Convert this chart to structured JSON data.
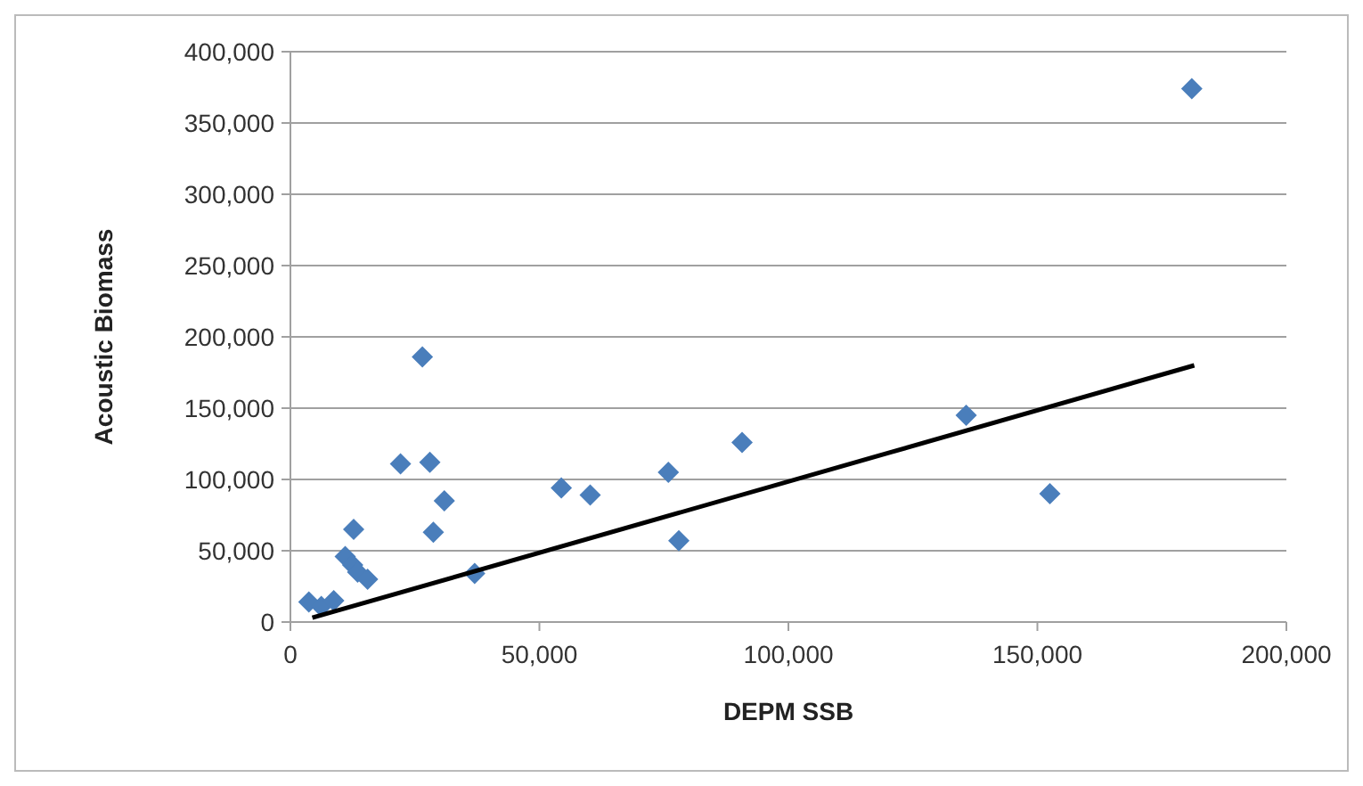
{
  "chart_data": {
    "type": "scatter",
    "xlabel": "DEPM SSB",
    "ylabel": "Acoustic Biomass",
    "marker": "diamond",
    "grid": "y",
    "xlim": [
      0,
      200000
    ],
    "xticks": [
      {
        "value": 0,
        "label": "0"
      },
      {
        "value": 50000,
        "label": "50,000"
      },
      {
        "value": 100000,
        "label": "100,000"
      },
      {
        "value": 150000,
        "label": "150,000"
      },
      {
        "value": 200000,
        "label": "200,000"
      }
    ],
    "ylim": [
      0,
      400000
    ],
    "yticks": [
      {
        "value": 0,
        "label": "0"
      },
      {
        "value": 50000,
        "label": "50,000"
      },
      {
        "value": 100000,
        "label": "100,000"
      },
      {
        "value": 150000,
        "label": "150,000"
      },
      {
        "value": 200000,
        "label": "200,000"
      },
      {
        "value": 250000,
        "label": "250,000"
      },
      {
        "value": 300000,
        "label": "300,000"
      },
      {
        "value": 350000,
        "label": "350,000"
      },
      {
        "value": 400000,
        "label": "400,000"
      }
    ],
    "series": [
      {
        "color": "#4a7ebb",
        "x": [
          3700,
          6200,
          8700,
          12700,
          11000,
          12500,
          13500,
          15500,
          28700,
          37000,
          78000,
          26500,
          22100,
          28000,
          30900,
          54400,
          60200,
          75900,
          90700,
          181000,
          135700,
          152500
        ],
        "values": [
          14000,
          11000,
          15000,
          65000,
          46000,
          40000,
          35000,
          30000,
          63000,
          34000,
          57000,
          186000,
          111000,
          112000,
          85000,
          94000,
          89000,
          105000,
          126000,
          374000,
          145000,
          90000
        ]
      },
      {
        "type": "line",
        "color": "#000000",
        "marker": "none",
        "x": [
          4400,
          181500
        ],
        "values": [
          3000,
          180000
        ]
      }
    ]
  }
}
